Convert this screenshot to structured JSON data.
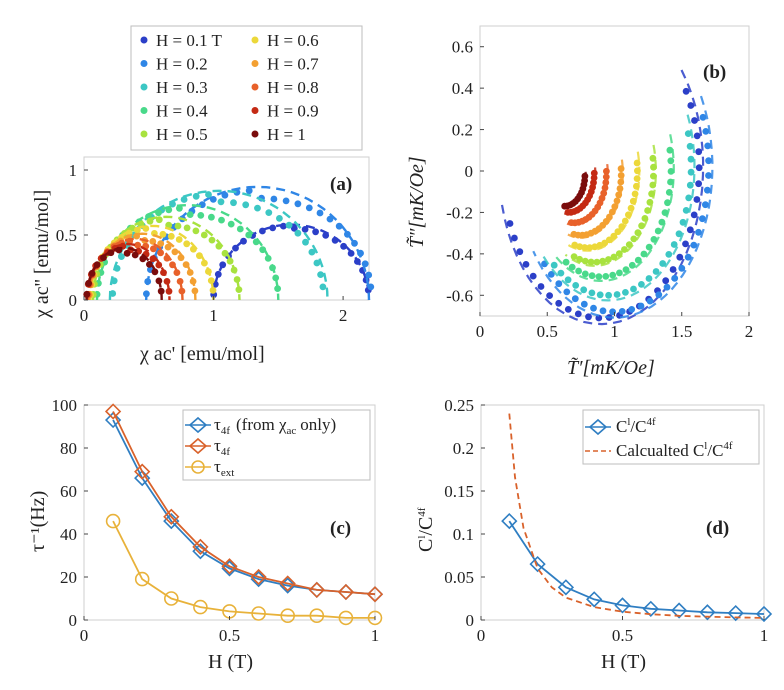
{
  "chart_data": [
    {
      "panel": "(a)",
      "type": "scatter",
      "xlabel": "χ  ac' [emu/mol]",
      "ylabel": "χ  ac'' [emu/mol]",
      "xlim": [
        0,
        2.2
      ],
      "ylim": [
        0,
        1.1
      ],
      "xticks": [
        "0",
        "1",
        "2"
      ],
      "yticks": [
        "0",
        "0.5",
        "1"
      ],
      "legend": {
        "title": "",
        "position": "top-left (above panel a)",
        "entries": [
          "H = 0.1 T",
          "H = 0.2",
          "H = 0.3",
          "H = 0.4",
          "H = 0.5",
          "H = 0.6",
          "H = 0.7",
          "H = 0.8",
          "H = 0.9",
          "H = 1"
        ],
        "colors": [
          "#2b3fc8",
          "#2f86e6",
          "#3cc7c4",
          "#49d98a",
          "#a8e23f",
          "#ecd83a",
          "#f3a032",
          "#e8612a",
          "#c42a14",
          "#7a0c0c"
        ]
      },
      "series": [
        {
          "name": "H = 0.1 T",
          "color": "#2b3fc8",
          "x0": 1.0,
          "x1": 2.2,
          "fit_x0": 1.0,
          "fit_x1": 2.2,
          "fit_h": 0.58,
          "dev": 0.05,
          "pts": 22
        },
        {
          "name": "H = 0.2",
          "color": "#2f86e6",
          "x0": 0.48,
          "x1": 2.22,
          "fit_x0": 0.48,
          "fit_x1": 2.2,
          "fit_h": 0.87,
          "dev": 0.1,
          "pts": 28
        },
        {
          "name": "H = 0.3",
          "color": "#3cc7c4",
          "x0": 0.22,
          "x1": 1.85,
          "fit_x0": 0.2,
          "fit_x1": 1.88,
          "fit_h": 0.84,
          "dev": 0.1,
          "pts": 26
        },
        {
          "name": "H = 0.4",
          "color": "#49d98a",
          "x0": 0.1,
          "x1": 1.5,
          "fit_x0": 0.1,
          "fit_x1": 1.5,
          "fit_h": 0.73,
          "dev": 0.1,
          "pts": 26
        },
        {
          "name": "H = 0.5",
          "color": "#a8e23f",
          "x0": 0.07,
          "x1": 1.2,
          "fit_x0": 0.07,
          "fit_x1": 1.2,
          "fit_h": 0.64,
          "dev": 0.1,
          "pts": 24
        },
        {
          "name": "H = 0.6",
          "color": "#ecd83a",
          "x0": 0.05,
          "x1": 1.0,
          "fit_x0": 0.05,
          "fit_x1": 1.0,
          "fit_h": 0.57,
          "dev": 0.1,
          "pts": 22
        },
        {
          "name": "H = 0.7",
          "color": "#f3a032",
          "x0": 0.04,
          "x1": 0.86,
          "fit_x0": 0.04,
          "fit_x1": 0.86,
          "fit_h": 0.51,
          "dev": 0.1,
          "pts": 20
        },
        {
          "name": "H = 0.8",
          "color": "#e8612a",
          "x0": 0.03,
          "x1": 0.76,
          "fit_x0": 0.03,
          "fit_x1": 0.76,
          "fit_h": 0.47,
          "dev": 0.1,
          "pts": 18
        },
        {
          "name": "H = 0.9",
          "color": "#c42a14",
          "x0": 0.02,
          "x1": 0.66,
          "fit_x0": 0.02,
          "fit_x1": 0.66,
          "fit_h": 0.43,
          "dev": 0.1,
          "pts": 16
        },
        {
          "name": "H = 1",
          "color": "#7a0c0c",
          "x0": 0.02,
          "x1": 0.6,
          "fit_x0": 0.02,
          "fit_x1": 0.6,
          "fit_h": 0.4,
          "dev": 0.1,
          "pts": 14
        }
      ]
    },
    {
      "panel": "(b)",
      "type": "scatter",
      "xlabel": "T̃′[mK/Oe]",
      "ylabel": "T̃″[mK/Oe]",
      "xlim": [
        0,
        2
      ],
      "ylim": [
        -0.7,
        0.7
      ],
      "xticks": [
        "0",
        "0.5",
        "1",
        "1.5",
        "2"
      ],
      "yticks": [
        "-0.6",
        "-0.4",
        "-0.2",
        "0",
        "0.2",
        "0.4",
        "0.6"
      ],
      "series": [
        {
          "name": "H = 0.1 T",
          "color": "#2b3fc8",
          "a0": 60,
          "a1": 248,
          "cx": 0.9,
          "cy": 0.02,
          "r": 0.73,
          "pts": 32
        },
        {
          "name": "H = 0.2",
          "color": "#2f86e6",
          "a0": 70,
          "a1": 228,
          "cx": 1.0,
          "cy": 0.02,
          "r": 0.7,
          "pts": 28
        },
        {
          "name": "H = 0.3",
          "color": "#3cc7c4",
          "a0": 75,
          "a1": 220,
          "cx": 0.95,
          "cy": 0.02,
          "r": 0.62,
          "pts": 26
        },
        {
          "name": "H = 0.4",
          "color": "#49d98a",
          "a0": 80,
          "a1": 210,
          "cx": 0.9,
          "cy": 0.01,
          "r": 0.52,
          "pts": 24
        },
        {
          "name": "H = 0.5",
          "color": "#a8e23f",
          "a0": 82,
          "a1": 200,
          "cx": 0.85,
          "cy": 0.0,
          "r": 0.44,
          "pts": 22
        },
        {
          "name": "H = 0.6",
          "color": "#ecd83a",
          "a0": 84,
          "a1": 195,
          "cx": 0.8,
          "cy": 0.0,
          "r": 0.37,
          "pts": 20
        },
        {
          "name": "H = 0.7",
          "color": "#f3a032",
          "a0": 86,
          "a1": 190,
          "cx": 0.75,
          "cy": -0.01,
          "r": 0.3,
          "pts": 18
        },
        {
          "name": "H = 0.8",
          "color": "#e8612a",
          "a0": 88,
          "a1": 185,
          "cx": 0.7,
          "cy": -0.01,
          "r": 0.24,
          "pts": 16
        },
        {
          "name": "H = 0.9",
          "color": "#c42a14",
          "a0": 90,
          "a1": 182,
          "cx": 0.66,
          "cy": -0.01,
          "r": 0.19,
          "pts": 14
        },
        {
          "name": "H = 1",
          "color": "#7a0c0c",
          "a0": 92,
          "a1": 180,
          "cx": 0.63,
          "cy": -0.02,
          "r": 0.15,
          "pts": 12
        }
      ]
    },
    {
      "panel": "(c)",
      "type": "line",
      "xlabel": "H (T)",
      "ylabel": "τ⁻¹(Hz)",
      "xlim": [
        0,
        1
      ],
      "ylim": [
        0,
        100
      ],
      "xticks": [
        "0",
        "0.5",
        "1"
      ],
      "yticks": [
        "0",
        "20",
        "40",
        "60",
        "80",
        "100"
      ],
      "legend": {
        "position": "top-right",
        "entries": [
          "τ4f  (from χac only)",
          "τ4f",
          "τext"
        ]
      },
      "x": [
        0.1,
        0.2,
        0.3,
        0.4,
        0.5,
        0.6,
        0.7,
        0.8,
        0.9,
        1.0
      ],
      "series": [
        {
          "name": "τ4f (from χac only)",
          "color": "#2f7ec2",
          "marker": "diamond",
          "values": [
            93,
            66,
            46,
            32,
            24,
            19,
            16,
            14,
            13,
            12
          ]
        },
        {
          "name": "τ4f",
          "color": "#d9622b",
          "marker": "diamond",
          "values": [
            97,
            69,
            48,
            34,
            25,
            20,
            17,
            14,
            13,
            12
          ]
        },
        {
          "name": "τext",
          "color": "#e8b23a",
          "marker": "circle",
          "values": [
            46,
            19,
            10,
            6,
            4,
            3,
            2,
            2,
            1,
            1
          ]
        }
      ]
    },
    {
      "panel": "(d)",
      "type": "line",
      "xlabel": "H (T)",
      "ylabel": "Cl/C4f",
      "xlim": [
        0,
        1
      ],
      "ylim": [
        0,
        0.25
      ],
      "xticks": [
        "0",
        "0.5",
        "1"
      ],
      "yticks": [
        "0",
        "0.05",
        "0.1",
        "0.15",
        "0.2",
        "0.25"
      ],
      "legend": {
        "position": "top-right",
        "entries": [
          "Cl/C4f",
          "Calcualted  Cl/C4f"
        ]
      },
      "x": [
        0.1,
        0.2,
        0.3,
        0.4,
        0.5,
        0.6,
        0.7,
        0.8,
        0.9,
        1.0
      ],
      "series": [
        {
          "name": "Cl/C4f",
          "color": "#2f7ec2",
          "marker": "diamond",
          "values": [
            0.115,
            0.065,
            0.038,
            0.024,
            0.017,
            0.013,
            0.011,
            0.009,
            0.008,
            0.007
          ]
        },
        {
          "name": "Calcualted Cl/C4f",
          "color": "#d9622b",
          "style": "dashed",
          "x": [
            0.1,
            0.12,
            0.15,
            0.2,
            0.25,
            0.3,
            0.4,
            0.5,
            0.6,
            0.7,
            0.8,
            0.9,
            1.0
          ],
          "values": [
            0.24,
            0.166,
            0.107,
            0.06,
            0.038,
            0.026,
            0.015,
            0.0096,
            0.0067,
            0.0049,
            0.0038,
            0.003,
            0.0024
          ]
        }
      ]
    }
  ],
  "legend_top": {
    "items": [
      {
        "label": "H = 0.1 T",
        "color": "#2b3fc8"
      },
      {
        "label": "H = 0.2",
        "color": "#2f86e6"
      },
      {
        "label": "H = 0.3",
        "color": "#3cc7c4"
      },
      {
        "label": "H = 0.4",
        "color": "#49d98a"
      },
      {
        "label": "H = 0.5",
        "color": "#a8e23f"
      },
      {
        "label": "H = 0.6",
        "color": "#ecd83a"
      },
      {
        "label": "H = 0.7",
        "color": "#f3a032"
      },
      {
        "label": "H = 0.8",
        "color": "#e8612a"
      },
      {
        "label": "H = 0.9",
        "color": "#c42a14"
      },
      {
        "label": "H = 1",
        "color": "#7a0c0c"
      }
    ]
  },
  "panels": {
    "a": {
      "label": "(a)",
      "xlabel": "χ  ac' [emu/mol]",
      "ylabel": "χ  ac'' [emu/mol]"
    },
    "b": {
      "label": "(b)",
      "xlabel": "T̃′[mK/Oe]",
      "ylabel": "T̃″[mK/Oe]"
    },
    "c": {
      "label": "(c)",
      "xlabel": "H (T)",
      "ylabel": "τ⁻¹(Hz)",
      "legend": [
        "τ",
        "4f",
        "(from χ",
        "ac",
        "only)",
        "τ",
        "4f",
        "τ",
        "ext"
      ]
    },
    "d": {
      "label": "(d)",
      "xlabel": "H (T)",
      "ylabel": "C",
      "ylabel_sup1": "l",
      "ylabel_mid": "/C",
      "ylabel_sup2": "4f",
      "legend": [
        "C",
        "l",
        "/C",
        "4f",
        "Calcualted  C",
        "l",
        "/C",
        "4f"
      ]
    }
  }
}
